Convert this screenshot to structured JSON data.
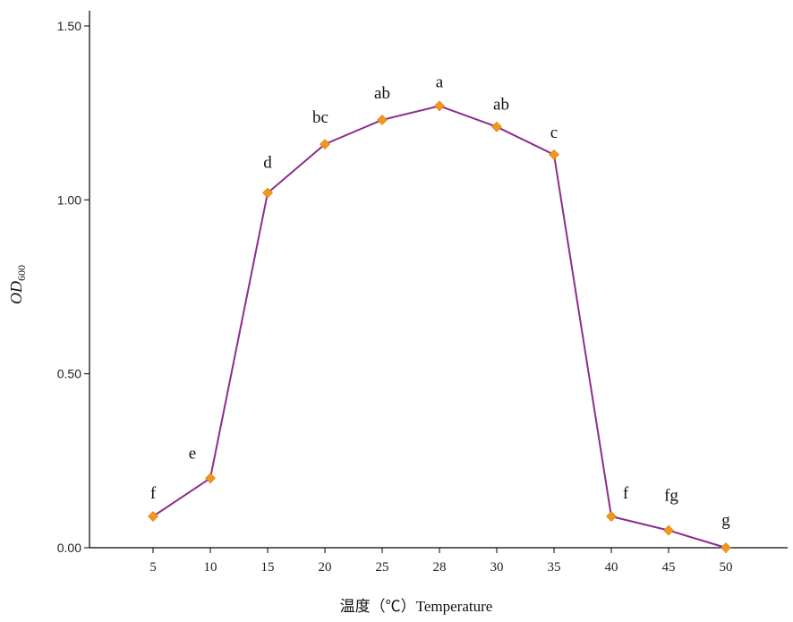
{
  "chart_data": {
    "type": "line",
    "x_categories": [
      "5",
      "10",
      "15",
      "20",
      "25",
      "28",
      "30",
      "35",
      "40",
      "45",
      "50"
    ],
    "series": [
      {
        "values": [
          0.09,
          0.2,
          1.02,
          1.16,
          1.23,
          1.27,
          1.21,
          1.13,
          0.09,
          0.05,
          0.0
        ],
        "significance_labels": [
          "f",
          "e",
          "d",
          "bc",
          "ab",
          "a",
          "ab",
          "c",
          "f",
          "fg",
          "g"
        ],
        "line_color": "#8b2d8b",
        "marker_color": "#f2961c"
      }
    ],
    "y_ticks": [
      "0.00",
      "0.50",
      "1.00",
      "1.50"
    ],
    "ylim": [
      0,
      1.5
    ],
    "xlabel": "温度（℃）Temperature",
    "ylabel_main": "OD",
    "ylabel_sub": "600",
    "grid": false
  }
}
